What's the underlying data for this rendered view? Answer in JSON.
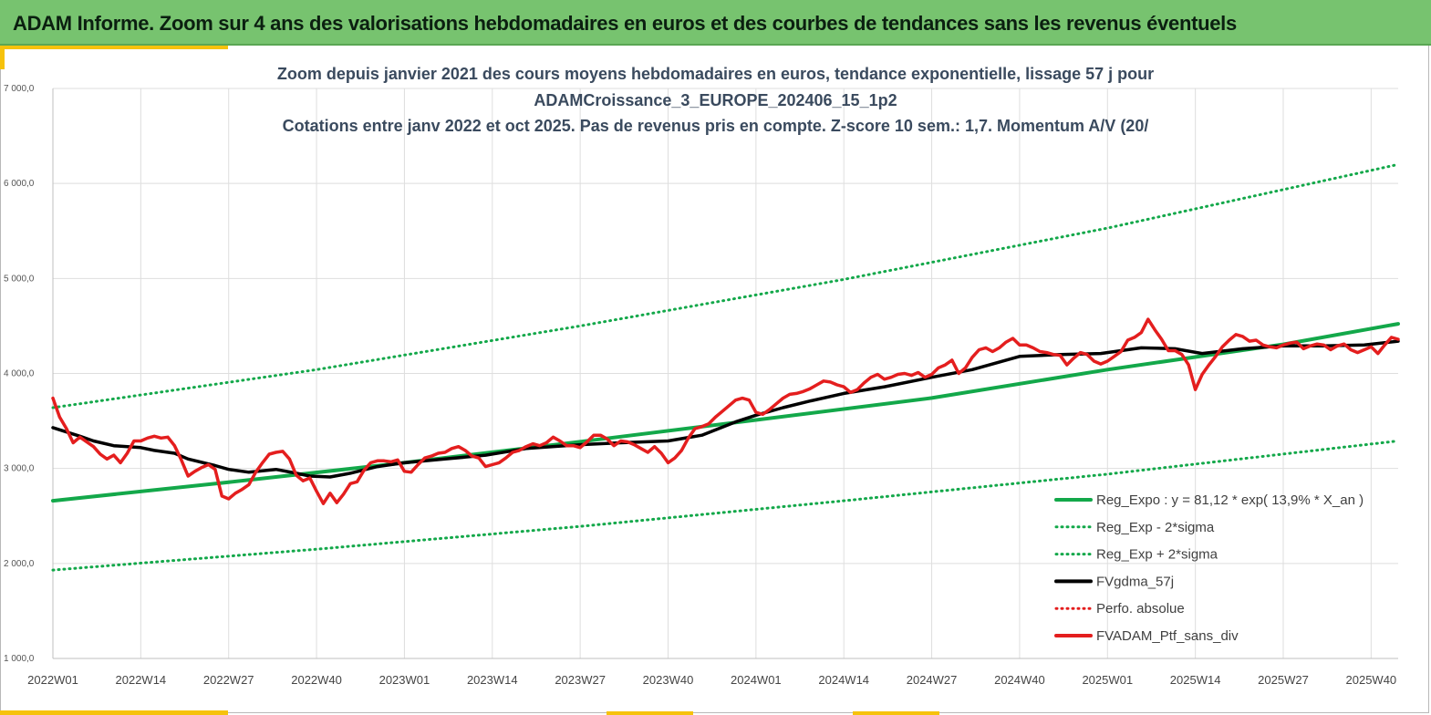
{
  "banner": {
    "title": "ADAM Informe. Zoom sur 4 ans des valorisations hebdomadaires en euros et des courbes de tendances sans les revenus éventuels"
  },
  "chart_data": {
    "type": "line",
    "title_lines": [
      "Zoom depuis janvier 2021 des cours moyens hebdomadaires  en euros, tendance exponentielle, lissage 57 j pour",
      "ADAMCroissance_3_EUROPE_202406_15_1p2",
      "Cotations  entre janv 2022 et oct 2025. Pas de revenus pris en compte. Z-score 10 sem.: 1,7. Momentum A/V (20/"
    ],
    "xlabel": "",
    "ylabel": "",
    "ylim": [
      1000,
      7000
    ],
    "yticks": [
      1000,
      2000,
      3000,
      4000,
      5000,
      6000,
      7000
    ],
    "ytick_labels": [
      "1 000,0",
      "2 000,0",
      "3 000,0",
      "4 000,0",
      "5 000,0",
      "6 000,0",
      "7 000,0"
    ],
    "xlim": [
      0,
      199
    ],
    "x_ticks": [
      {
        "i": 0,
        "label": "2022W01"
      },
      {
        "i": 13,
        "label": "2022W14"
      },
      {
        "i": 26,
        "label": "2022W27"
      },
      {
        "i": 39,
        "label": "2022W40"
      },
      {
        "i": 52,
        "label": "2023W01"
      },
      {
        "i": 65,
        "label": "2023W14"
      },
      {
        "i": 78,
        "label": "2023W27"
      },
      {
        "i": 91,
        "label": "2023W40"
      },
      {
        "i": 104,
        "label": "2024W01"
      },
      {
        "i": 117,
        "label": "2024W14"
      },
      {
        "i": 130,
        "label": "2024W27"
      },
      {
        "i": 143,
        "label": "2024W40"
      },
      {
        "i": 156,
        "label": "2025W01"
      },
      {
        "i": 169,
        "label": "2025W14"
      },
      {
        "i": 182,
        "label": "2025W27"
      },
      {
        "i": 195,
        "label": "2025W40"
      }
    ],
    "grid": "vertical at each labeled week, horizontal at each y tick",
    "legend_position": "bottom-right",
    "series": [
      {
        "name": "Reg_Expo : y = 81,12 * exp( 13,9% *  X_an )",
        "color": "#13a84a",
        "style": "solid",
        "points": [
          [
            0,
            2660
          ],
          [
            26,
            2856
          ],
          [
            52,
            3060
          ],
          [
            78,
            3282
          ],
          [
            104,
            3510
          ],
          [
            130,
            3742
          ],
          [
            156,
            4040
          ],
          [
            182,
            4306
          ],
          [
            199,
            4522
          ]
        ]
      },
      {
        "name": "Reg_Exp - 2*sigma",
        "color": "#13a84a",
        "style": "dotted",
        "points": [
          [
            0,
            1930
          ],
          [
            39,
            2150
          ],
          [
            78,
            2390
          ],
          [
            117,
            2660
          ],
          [
            156,
            2940
          ],
          [
            199,
            3290
          ]
        ]
      },
      {
        "name": "Reg_Exp + 2*sigma",
        "color": "#13a84a",
        "style": "dotted",
        "points": [
          [
            0,
            3640
          ],
          [
            39,
            4040
          ],
          [
            78,
            4500
          ],
          [
            117,
            4990
          ],
          [
            156,
            5530
          ],
          [
            199,
            6200
          ]
        ]
      },
      {
        "name": "FVgdma_57j",
        "color": "#000000",
        "style": "solid",
        "points": [
          [
            0,
            3430
          ],
          [
            4,
            3340
          ],
          [
            6,
            3290
          ],
          [
            9,
            3240
          ],
          [
            13,
            3220
          ],
          [
            15,
            3190
          ],
          [
            18,
            3160
          ],
          [
            20,
            3100
          ],
          [
            24,
            3030
          ],
          [
            26,
            2990
          ],
          [
            29,
            2960
          ],
          [
            33,
            2990
          ],
          [
            36,
            2950
          ],
          [
            38,
            2920
          ],
          [
            41,
            2910
          ],
          [
            44,
            2950
          ],
          [
            48,
            3020
          ],
          [
            52,
            3060
          ],
          [
            58,
            3100
          ],
          [
            64,
            3140
          ],
          [
            70,
            3210
          ],
          [
            78,
            3250
          ],
          [
            84,
            3270
          ],
          [
            91,
            3290
          ],
          [
            96,
            3350
          ],
          [
            101,
            3490
          ],
          [
            104,
            3560
          ],
          [
            108,
            3640
          ],
          [
            112,
            3710
          ],
          [
            117,
            3790
          ],
          [
            123,
            3860
          ],
          [
            130,
            3960
          ],
          [
            136,
            4040
          ],
          [
            143,
            4180
          ],
          [
            149,
            4200
          ],
          [
            155,
            4210
          ],
          [
            161,
            4270
          ],
          [
            166,
            4260
          ],
          [
            170,
            4210
          ],
          [
            176,
            4260
          ],
          [
            182,
            4290
          ],
          [
            188,
            4290
          ],
          [
            194,
            4300
          ],
          [
            199,
            4340
          ]
        ]
      },
      {
        "name": "Perfo. absolue",
        "color": "#e41e1e",
        "style": "dotted",
        "points": []
      },
      {
        "name": "FVADAM_Ptf_sans_div",
        "color": "#e41e1e",
        "style": "solid",
        "points": [
          [
            0,
            3740
          ],
          [
            1,
            3540
          ],
          [
            2,
            3420
          ],
          [
            3,
            3270
          ],
          [
            4,
            3330
          ],
          [
            6,
            3230
          ],
          [
            7,
            3150
          ],
          [
            8,
            3100
          ],
          [
            9,
            3140
          ],
          [
            10,
            3060
          ],
          [
            11,
            3160
          ],
          [
            12,
            3290
          ],
          [
            13,
            3290
          ],
          [
            14,
            3320
          ],
          [
            15,
            3340
          ],
          [
            16,
            3320
          ],
          [
            17,
            3330
          ],
          [
            18,
            3240
          ],
          [
            19,
            3090
          ],
          [
            20,
            2920
          ],
          [
            21,
            2970
          ],
          [
            22,
            3010
          ],
          [
            23,
            3040
          ],
          [
            24,
            2990
          ],
          [
            25,
            2710
          ],
          [
            26,
            2680
          ],
          [
            27,
            2740
          ],
          [
            28,
            2780
          ],
          [
            29,
            2830
          ],
          [
            30,
            2960
          ],
          [
            31,
            3060
          ],
          [
            32,
            3150
          ],
          [
            33,
            3170
          ],
          [
            34,
            3180
          ],
          [
            35,
            3100
          ],
          [
            36,
            2930
          ],
          [
            37,
            2870
          ],
          [
            38,
            2900
          ],
          [
            39,
            2760
          ],
          [
            40,
            2630
          ],
          [
            41,
            2740
          ],
          [
            42,
            2640
          ],
          [
            43,
            2730
          ],
          [
            44,
            2840
          ],
          [
            45,
            2860
          ],
          [
            46,
            2980
          ],
          [
            47,
            3060
          ],
          [
            48,
            3080
          ],
          [
            49,
            3080
          ],
          [
            50,
            3070
          ],
          [
            51,
            3090
          ],
          [
            52,
            2970
          ],
          [
            53,
            2960
          ],
          [
            54,
            3040
          ],
          [
            55,
            3110
          ],
          [
            56,
            3130
          ],
          [
            57,
            3160
          ],
          [
            58,
            3170
          ],
          [
            59,
            3210
          ],
          [
            60,
            3230
          ],
          [
            61,
            3190
          ],
          [
            62,
            3130
          ],
          [
            63,
            3110
          ],
          [
            64,
            3020
          ],
          [
            65,
            3040
          ],
          [
            66,
            3060
          ],
          [
            67,
            3110
          ],
          [
            68,
            3170
          ],
          [
            69,
            3190
          ],
          [
            70,
            3230
          ],
          [
            71,
            3260
          ],
          [
            72,
            3240
          ],
          [
            73,
            3270
          ],
          [
            74,
            3330
          ],
          [
            75,
            3290
          ],
          [
            76,
            3240
          ],
          [
            77,
            3240
          ],
          [
            78,
            3220
          ],
          [
            79,
            3280
          ],
          [
            80,
            3350
          ],
          [
            81,
            3350
          ],
          [
            82,
            3310
          ],
          [
            83,
            3240
          ],
          [
            84,
            3290
          ],
          [
            85,
            3280
          ],
          [
            86,
            3250
          ],
          [
            87,
            3210
          ],
          [
            88,
            3170
          ],
          [
            89,
            3230
          ],
          [
            90,
            3160
          ],
          [
            91,
            3060
          ],
          [
            92,
            3110
          ],
          [
            93,
            3190
          ],
          [
            94,
            3320
          ],
          [
            95,
            3420
          ],
          [
            96,
            3440
          ],
          [
            97,
            3470
          ],
          [
            98,
            3540
          ],
          [
            99,
            3600
          ],
          [
            100,
            3660
          ],
          [
            101,
            3720
          ],
          [
            102,
            3740
          ],
          [
            103,
            3720
          ],
          [
            104,
            3590
          ],
          [
            105,
            3570
          ],
          [
            106,
            3620
          ],
          [
            107,
            3680
          ],
          [
            108,
            3740
          ],
          [
            109,
            3780
          ],
          [
            110,
            3790
          ],
          [
            111,
            3810
          ],
          [
            112,
            3840
          ],
          [
            113,
            3880
          ],
          [
            114,
            3920
          ],
          [
            115,
            3910
          ],
          [
            116,
            3880
          ],
          [
            117,
            3860
          ],
          [
            118,
            3800
          ],
          [
            119,
            3830
          ],
          [
            120,
            3900
          ],
          [
            121,
            3960
          ],
          [
            122,
            3990
          ],
          [
            123,
            3940
          ],
          [
            124,
            3960
          ],
          [
            125,
            3990
          ],
          [
            126,
            4000
          ],
          [
            127,
            3980
          ],
          [
            128,
            4010
          ],
          [
            129,
            3960
          ],
          [
            130,
            3990
          ],
          [
            131,
            4060
          ],
          [
            132,
            4090
          ],
          [
            133,
            4140
          ],
          [
            134,
            4000
          ],
          [
            135,
            4060
          ],
          [
            136,
            4170
          ],
          [
            137,
            4250
          ],
          [
            138,
            4270
          ],
          [
            139,
            4230
          ],
          [
            140,
            4270
          ],
          [
            141,
            4330
          ],
          [
            142,
            4370
          ],
          [
            143,
            4300
          ],
          [
            144,
            4300
          ],
          [
            145,
            4270
          ],
          [
            146,
            4230
          ],
          [
            147,
            4220
          ],
          [
            148,
            4200
          ],
          [
            149,
            4190
          ],
          [
            150,
            4090
          ],
          [
            151,
            4160
          ],
          [
            152,
            4220
          ],
          [
            153,
            4200
          ],
          [
            154,
            4130
          ],
          [
            155,
            4100
          ],
          [
            156,
            4130
          ],
          [
            157,
            4180
          ],
          [
            158,
            4230
          ],
          [
            159,
            4350
          ],
          [
            160,
            4380
          ],
          [
            161,
            4430
          ],
          [
            162,
            4570
          ],
          [
            163,
            4460
          ],
          [
            164,
            4360
          ],
          [
            165,
            4240
          ],
          [
            166,
            4240
          ],
          [
            167,
            4200
          ],
          [
            168,
            4090
          ],
          [
            169,
            3830
          ],
          [
            170,
            3990
          ],
          [
            171,
            4090
          ],
          [
            172,
            4180
          ],
          [
            173,
            4280
          ],
          [
            174,
            4350
          ],
          [
            175,
            4410
          ],
          [
            176,
            4390
          ],
          [
            177,
            4340
          ],
          [
            178,
            4350
          ],
          [
            179,
            4300
          ],
          [
            180,
            4280
          ],
          [
            181,
            4270
          ],
          [
            182,
            4300
          ],
          [
            183,
            4320
          ],
          [
            184,
            4330
          ],
          [
            185,
            4260
          ],
          [
            186,
            4290
          ],
          [
            187,
            4310
          ],
          [
            188,
            4300
          ],
          [
            189,
            4250
          ],
          [
            190,
            4290
          ],
          [
            191,
            4310
          ],
          [
            192,
            4250
          ],
          [
            193,
            4220
          ],
          [
            194,
            4250
          ],
          [
            195,
            4280
          ],
          [
            196,
            4210
          ],
          [
            197,
            4300
          ],
          [
            198,
            4380
          ],
          [
            199,
            4360
          ]
        ]
      }
    ]
  }
}
